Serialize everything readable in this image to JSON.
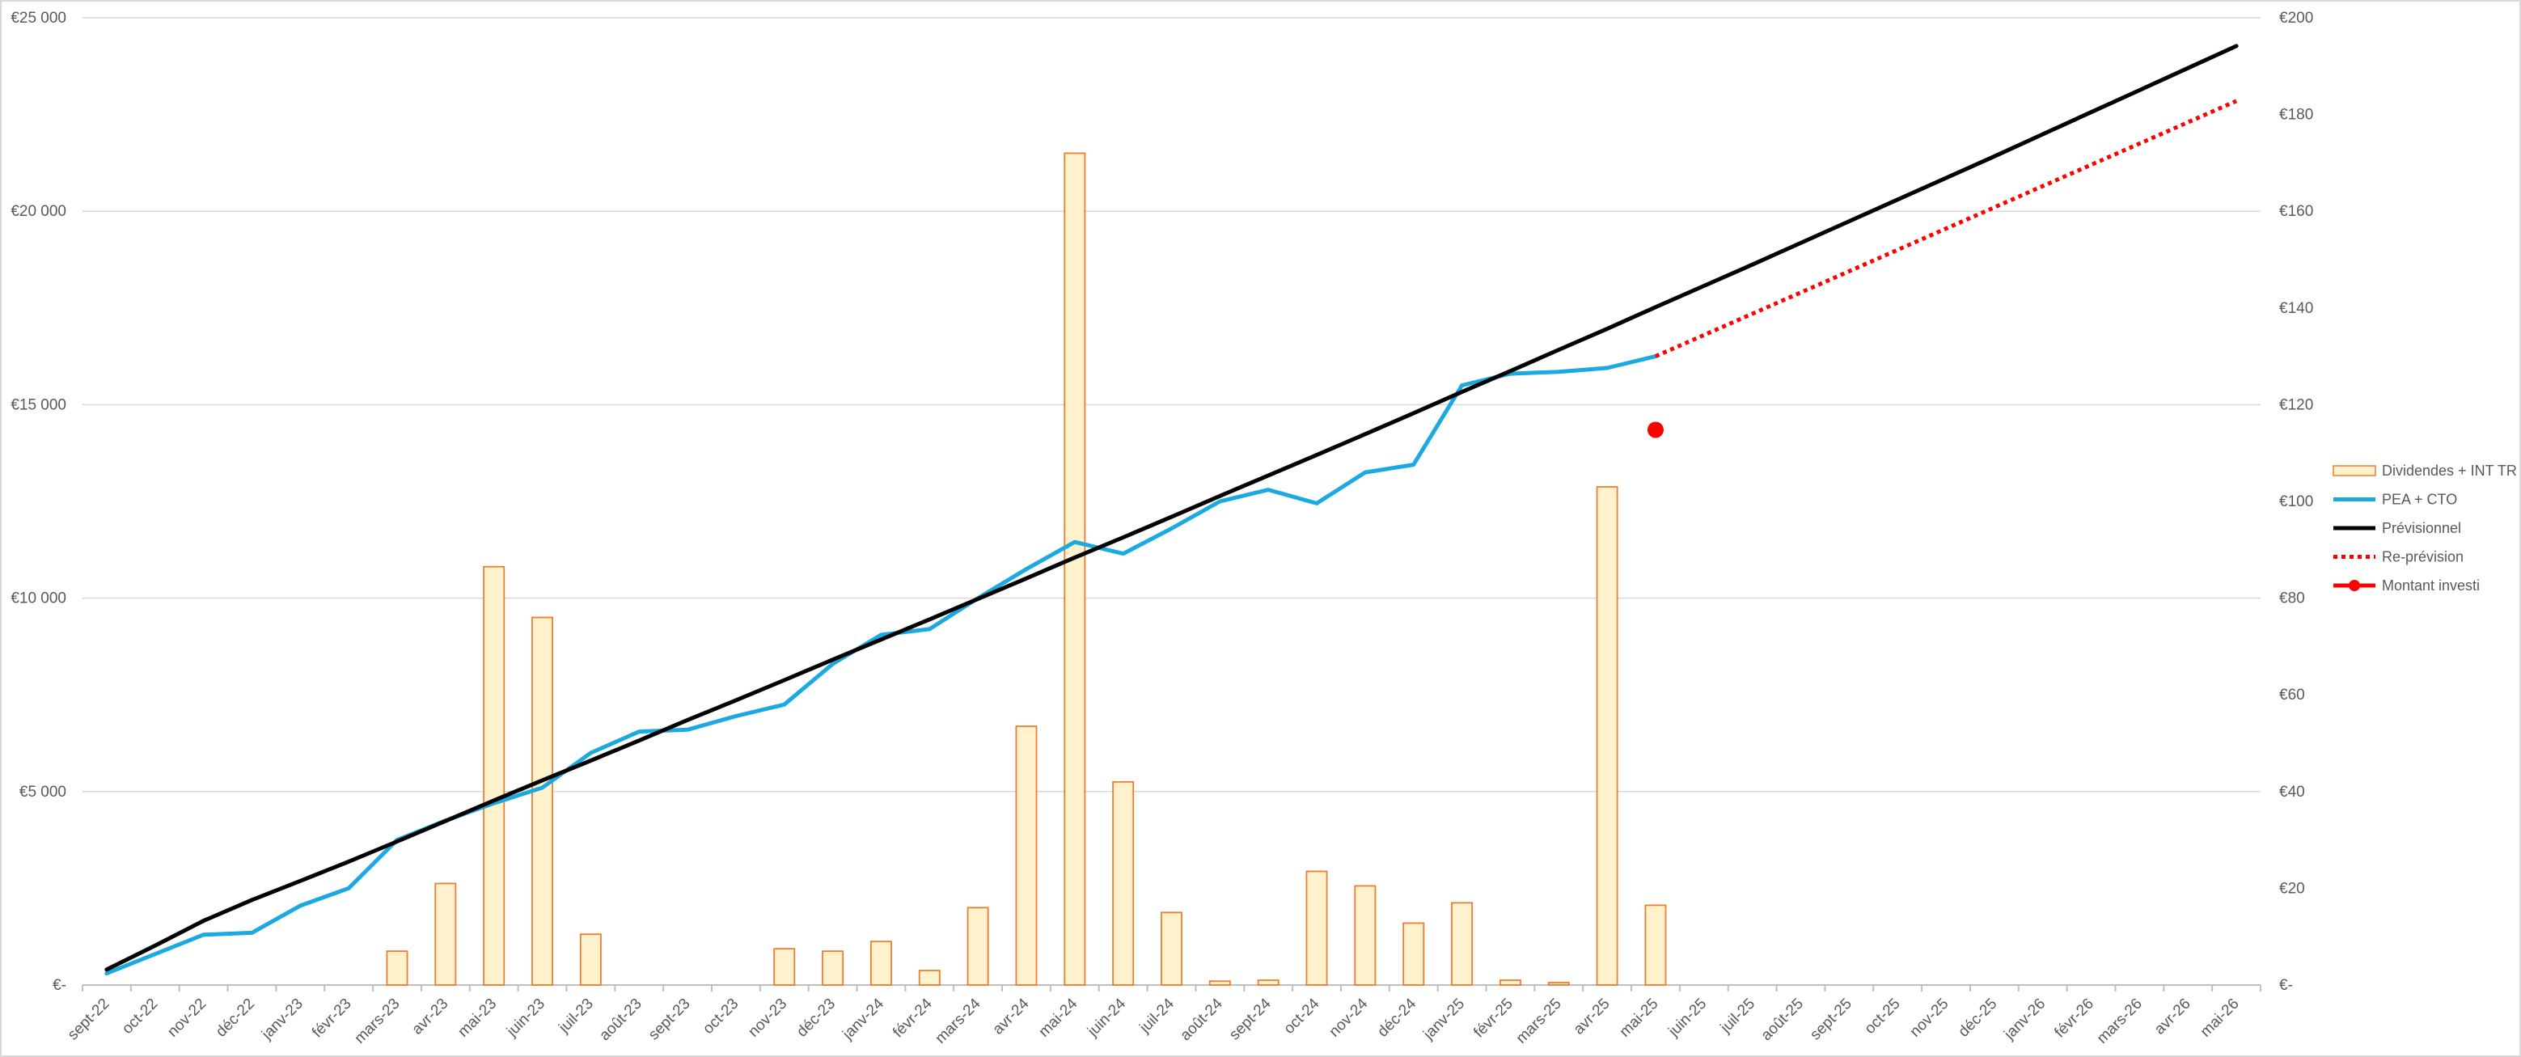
{
  "chart_data": {
    "type": "bar",
    "categories": [
      "sept-22",
      "oct-22",
      "nov-22",
      "déc-22",
      "janv-23",
      "févr-23",
      "mars-23",
      "avr-23",
      "mai-23",
      "juin-23",
      "juil-23",
      "août-23",
      "sept-23",
      "oct-23",
      "nov-23",
      "déc-23",
      "janv-24",
      "févr-24",
      "mars-24",
      "avr-24",
      "mai-24",
      "juin-24",
      "juil-24",
      "août-24",
      "sept-24",
      "oct-24",
      "nov-24",
      "déc-24",
      "janv-25",
      "févr-25",
      "mars-25",
      "avr-25",
      "mai-25",
      "juin-25",
      "juil-25",
      "août-25",
      "sept-25",
      "oct-25",
      "nov-25",
      "déc-25",
      "janv-26",
      "févr-26",
      "mars-26",
      "avr-26",
      "mai-26"
    ],
    "y_left": {
      "min": 0,
      "max": 25000,
      "ticks": [
        0,
        5000,
        10000,
        15000,
        20000,
        25000
      ],
      "tick_labels": [
        "€-",
        "€5 000",
        "€10 000",
        "€15 000",
        "€20 000",
        "€25 000"
      ]
    },
    "y_right": {
      "min": 0,
      "max": 200,
      "ticks": [
        0,
        20,
        40,
        60,
        80,
        100,
        120,
        140,
        160,
        180,
        200
      ],
      "tick_labels": [
        "€-",
        "€20",
        "€40",
        "€60",
        "€80",
        "€100",
        "€120",
        "€140",
        "€160",
        "€180",
        "€200"
      ]
    },
    "grid": true,
    "legend_position": "right",
    "series": [
      {
        "name": "Dividendes + INT TR",
        "type": "bar",
        "axis": "right",
        "fill": "#fff2cc",
        "stroke": "#ed7d31",
        "values": [
          0,
          0,
          0,
          0,
          0,
          0,
          7,
          21,
          86.5,
          76,
          10.5,
          0,
          0,
          0,
          7.5,
          7,
          9,
          3,
          16,
          53.5,
          172,
          42,
          15,
          0.8,
          1,
          23.5,
          20.5,
          12.8,
          17,
          1,
          0.5,
          103,
          16.5,
          null,
          null,
          null,
          null,
          null,
          null,
          null,
          null,
          null,
          null,
          null,
          null
        ]
      },
      {
        "name": "PEA + CTO",
        "type": "line",
        "axis": "left",
        "color": "#1aa9e1",
        "values": [
          300,
          800,
          1300,
          1350,
          2050,
          2500,
          3750,
          4250,
          4700,
          5100,
          6000,
          6550,
          6600,
          6950,
          7250,
          8300,
          9050,
          9200,
          10000,
          10750,
          11450,
          11150,
          11800,
          12500,
          12800,
          12450,
          13250,
          13450,
          15500,
          15800,
          15850,
          15950,
          16250,
          null,
          null,
          null,
          null,
          null,
          null,
          null,
          null,
          null,
          null,
          null,
          null
        ]
      },
      {
        "name": "Prévisionnel",
        "type": "line",
        "axis": "left",
        "color": "#000000",
        "values": [
          400,
          1020,
          1660,
          2200,
          2690,
          3190,
          3710,
          4240,
          4770,
          5290,
          5800,
          6320,
          6850,
          7360,
          7880,
          8410,
          8930,
          9450,
          9980,
          10510,
          11050,
          11570,
          12100,
          12640,
          13170,
          13700,
          14240,
          14780,
          15330,
          15870,
          16420,
          16960,
          17520,
          18070,
          18620,
          19180,
          19740,
          20300,
          20860,
          21420,
          21990,
          22560,
          23130,
          23700,
          24270
        ]
      },
      {
        "name": "Re-prévision",
        "type": "line",
        "axis": "left",
        "style": "dotted",
        "color": "#ff0000",
        "values": [
          null,
          null,
          null,
          null,
          null,
          null,
          null,
          null,
          null,
          null,
          null,
          null,
          null,
          null,
          null,
          null,
          null,
          null,
          null,
          null,
          null,
          null,
          null,
          null,
          null,
          null,
          null,
          null,
          null,
          null,
          null,
          null,
          16250,
          16800,
          17350,
          17900,
          18450,
          19000,
          19550,
          20100,
          20650,
          21200,
          21750,
          22300,
          22850
        ]
      },
      {
        "name": "Montant investi",
        "type": "scatter",
        "axis": "left",
        "color": "#ff0000",
        "values": [
          null,
          null,
          null,
          null,
          null,
          null,
          null,
          null,
          null,
          null,
          null,
          null,
          null,
          null,
          null,
          null,
          null,
          null,
          null,
          null,
          null,
          null,
          null,
          null,
          null,
          null,
          null,
          null,
          null,
          null,
          null,
          null,
          14350,
          null,
          null,
          null,
          null,
          null,
          null,
          null,
          null,
          null,
          null,
          null,
          null
        ]
      }
    ]
  }
}
